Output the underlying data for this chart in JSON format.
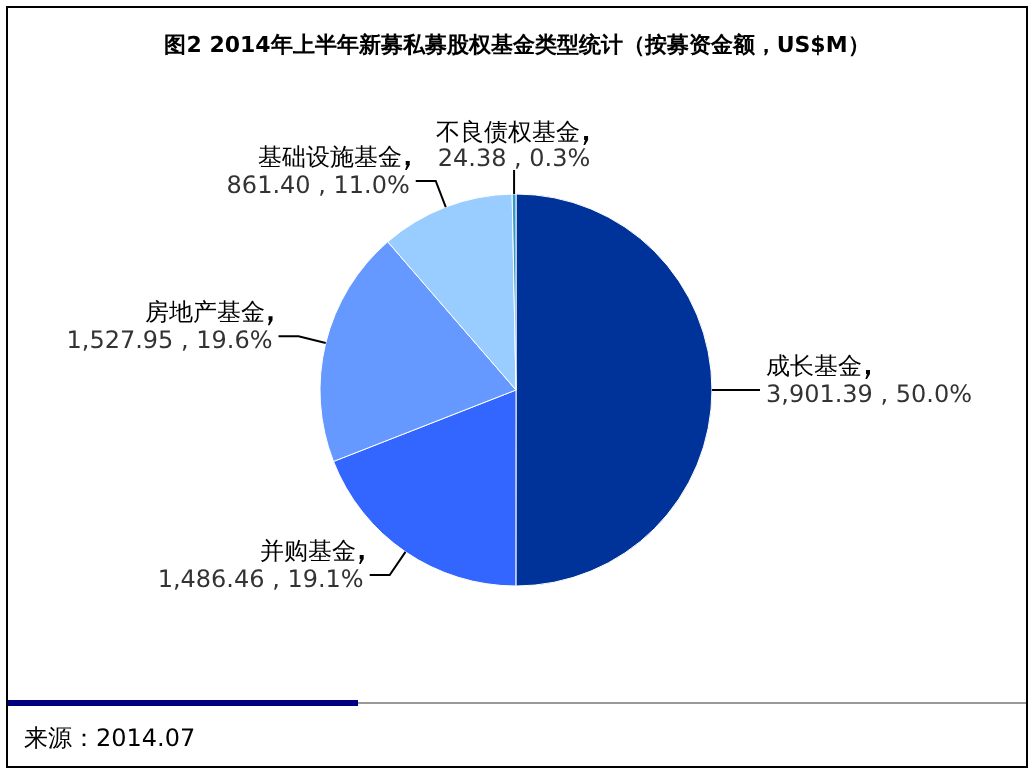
{
  "chart_data": {
    "type": "pie",
    "title": "图2 2014年上半年新募私募股权基金类型统计（按募资金额，US$M）",
    "categories": [
      "成长基金",
      "并购基金",
      "房地产基金",
      "基础设施基金",
      "不良债权基金"
    ],
    "values": [
      3901.39,
      1486.46,
      1527.95,
      861.4,
      24.38
    ],
    "value_labels": [
      "3,901.39 , 50.0%",
      "1,486.46 , 19.1%",
      "1,527.95 , 19.6%",
      "861.40 , 11.0%",
      "24.38 , 0.3%"
    ],
    "colors": [
      "#003399",
      "#3366ff",
      "#6699ff",
      "#99ccff",
      "#3399cc"
    ],
    "annotations": [
      "来源：2014.07"
    ]
  }
}
